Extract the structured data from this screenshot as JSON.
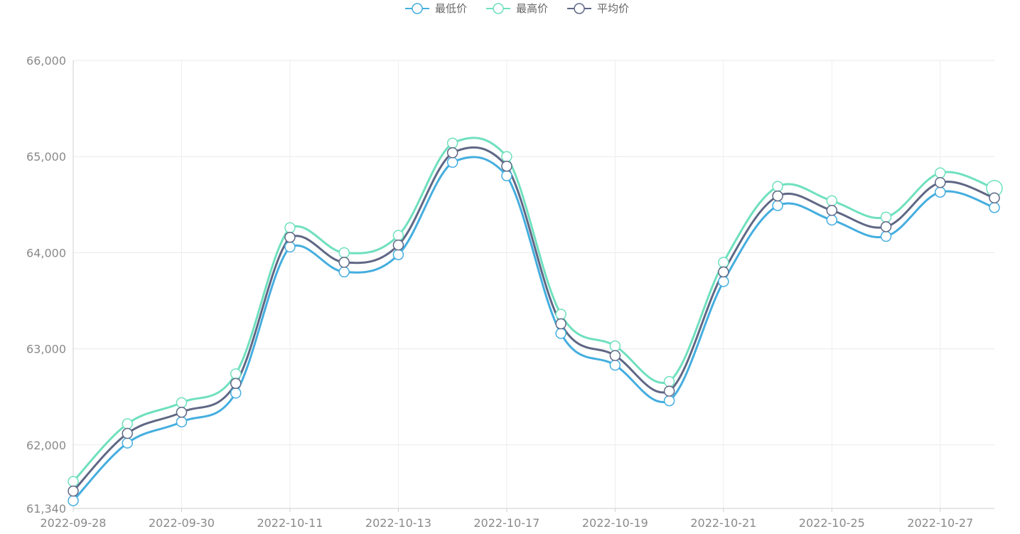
{
  "chart_data": {
    "type": "line",
    "title": "",
    "xlabel": "",
    "ylabel": "",
    "smooth": true,
    "grid": true,
    "legend_position": "top-center",
    "ylim": [
      61340,
      66000
    ],
    "y_ticks": [
      "61,340",
      "62,000",
      "63,000",
      "64,000",
      "65,000",
      "66,000"
    ],
    "y_tick_values": [
      61340,
      62000,
      63000,
      64000,
      65000,
      66000
    ],
    "x_labels_shown": [
      "2022-09-28",
      "2022-09-30",
      "2022-10-11",
      "2022-10-13",
      "2022-10-17",
      "2022-10-19",
      "2022-10-21",
      "2022-10-25",
      "2022-10-27"
    ],
    "n_points": 18,
    "series": [
      {
        "name": "最低价",
        "color": "#44aedf",
        "values": [
          61420,
          62020,
          62240,
          62540,
          64060,
          63800,
          63980,
          64940,
          64800,
          63160,
          62830,
          62460,
          63700,
          64490,
          64340,
          64170,
          64630,
          64470
        ]
      },
      {
        "name": "最高价",
        "color": "#6fe0be",
        "values": [
          61620,
          62220,
          62440,
          62740,
          64260,
          64000,
          64180,
          65140,
          65000,
          63360,
          63030,
          62660,
          63900,
          64690,
          64540,
          64370,
          64830,
          64670
        ]
      },
      {
        "name": "平均价",
        "color": "#5f6785",
        "values": [
          61520,
          62120,
          62340,
          62640,
          64160,
          63900,
          64080,
          65040,
          64900,
          63260,
          62930,
          62560,
          63800,
          64590,
          64440,
          64270,
          64730,
          64570
        ]
      }
    ]
  }
}
